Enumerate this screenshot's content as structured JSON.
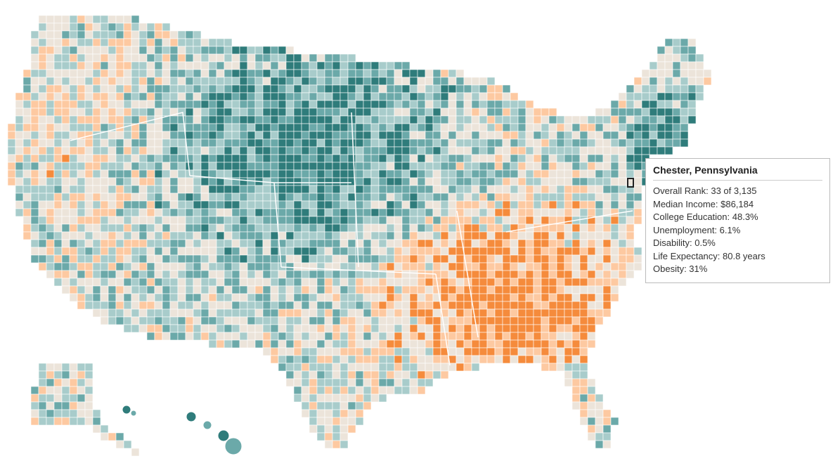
{
  "tooltip": {
    "title": "Chester, Pennsylvania",
    "rows": [
      "Overall Rank: 33 of 3,135",
      "Median Income: $86,184",
      "College Education: 48.3%",
      "Unemployment: 6.1%",
      "Disability: 0.5%",
      "Life Expectancy: 80.8 years",
      "Obesity: 31%"
    ]
  }
}
